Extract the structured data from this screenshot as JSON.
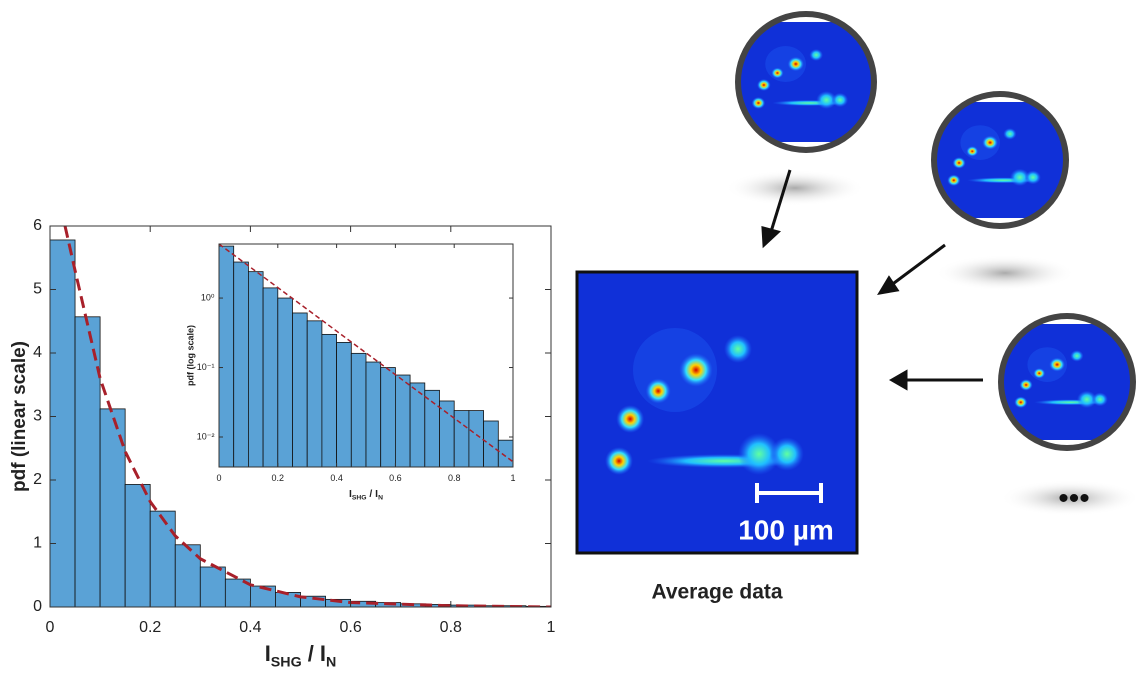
{
  "chart_data": [
    {
      "type": "histogram",
      "x_label": [
        "I",
        "SHG",
        " / I",
        "N"
      ],
      "y_label": "pdf (linear scale)",
      "bins": [
        0,
        0.05,
        0.1,
        0.15,
        0.2,
        0.25,
        0.3,
        0.35,
        0.4,
        0.45,
        0.5,
        0.55,
        0.6,
        0.65,
        0.7,
        0.75,
        0.8,
        0.85,
        0.9,
        0.95,
        1
      ],
      "values": [
        5.78,
        4.57,
        3.12,
        1.93,
        1.51,
        0.98,
        0.63,
        0.44,
        0.33,
        0.23,
        0.17,
        0.12,
        0.09,
        0.07,
        0.05,
        0.04,
        0.03,
        0.02,
        0.02,
        0.01
      ],
      "color": "#5aa2d6",
      "fit": {
        "x": [
          0.03,
          0.05,
          0.1,
          0.15,
          0.2,
          0.25,
          0.3,
          0.4,
          0.5,
          0.6,
          0.8,
          1
        ],
        "values": [
          6,
          5.3,
          3.6,
          2.45,
          1.66,
          1.12,
          0.76,
          0.35,
          0.16,
          0.07,
          0.02,
          0
        ],
        "color": "#a8202a"
      },
      "xlim": [
        0,
        1
      ],
      "ylim": [
        0,
        6
      ],
      "xticks": [
        0,
        0.2,
        0.4,
        0.6,
        0.8,
        1
      ],
      "yticks": [
        0,
        1,
        2,
        3,
        4,
        5,
        6
      ],
      "log_y": false
    },
    {
      "type": "histogram",
      "x_label": [
        "I",
        "SHG",
        " / I",
        "N"
      ],
      "y_label": "pdf (log scale)",
      "bins": [
        0,
        0.05,
        0.1,
        0.15,
        0.2,
        0.25,
        0.3,
        0.35,
        0.4,
        0.45,
        0.5,
        0.55,
        0.6,
        0.65,
        0.7,
        0.75,
        0.8,
        0.85,
        0.9,
        0.95,
        1
      ],
      "values": [
        5.6,
        3.3,
        2.4,
        1.4,
        1.0,
        0.61,
        0.47,
        0.3,
        0.23,
        0.16,
        0.12,
        0.1,
        0.078,
        0.06,
        0.047,
        0.033,
        0.024,
        0.024,
        0.017,
        0.009
      ],
      "color": "#5aa2d6",
      "fit": {
        "x": [
          0,
          1
        ],
        "values": [
          6.0,
          0.0044
        ],
        "color": "#a8202a"
      },
      "xlim": [
        0,
        1
      ],
      "ylim": [
        0.0037,
        6
      ],
      "xticks": [
        0,
        0.2,
        0.4,
        0.6,
        0.8,
        1
      ],
      "yticks": [
        {
          "value": 0.01,
          "label": "10⁻²"
        },
        {
          "value": 0.1,
          "label": "10⁻¹"
        },
        {
          "value": 1,
          "label": "10⁰"
        }
      ],
      "log_y": true
    }
  ],
  "annotations": {
    "scale_bar": "100 µm",
    "caption": "Average data",
    "ellipsis": "•••"
  }
}
